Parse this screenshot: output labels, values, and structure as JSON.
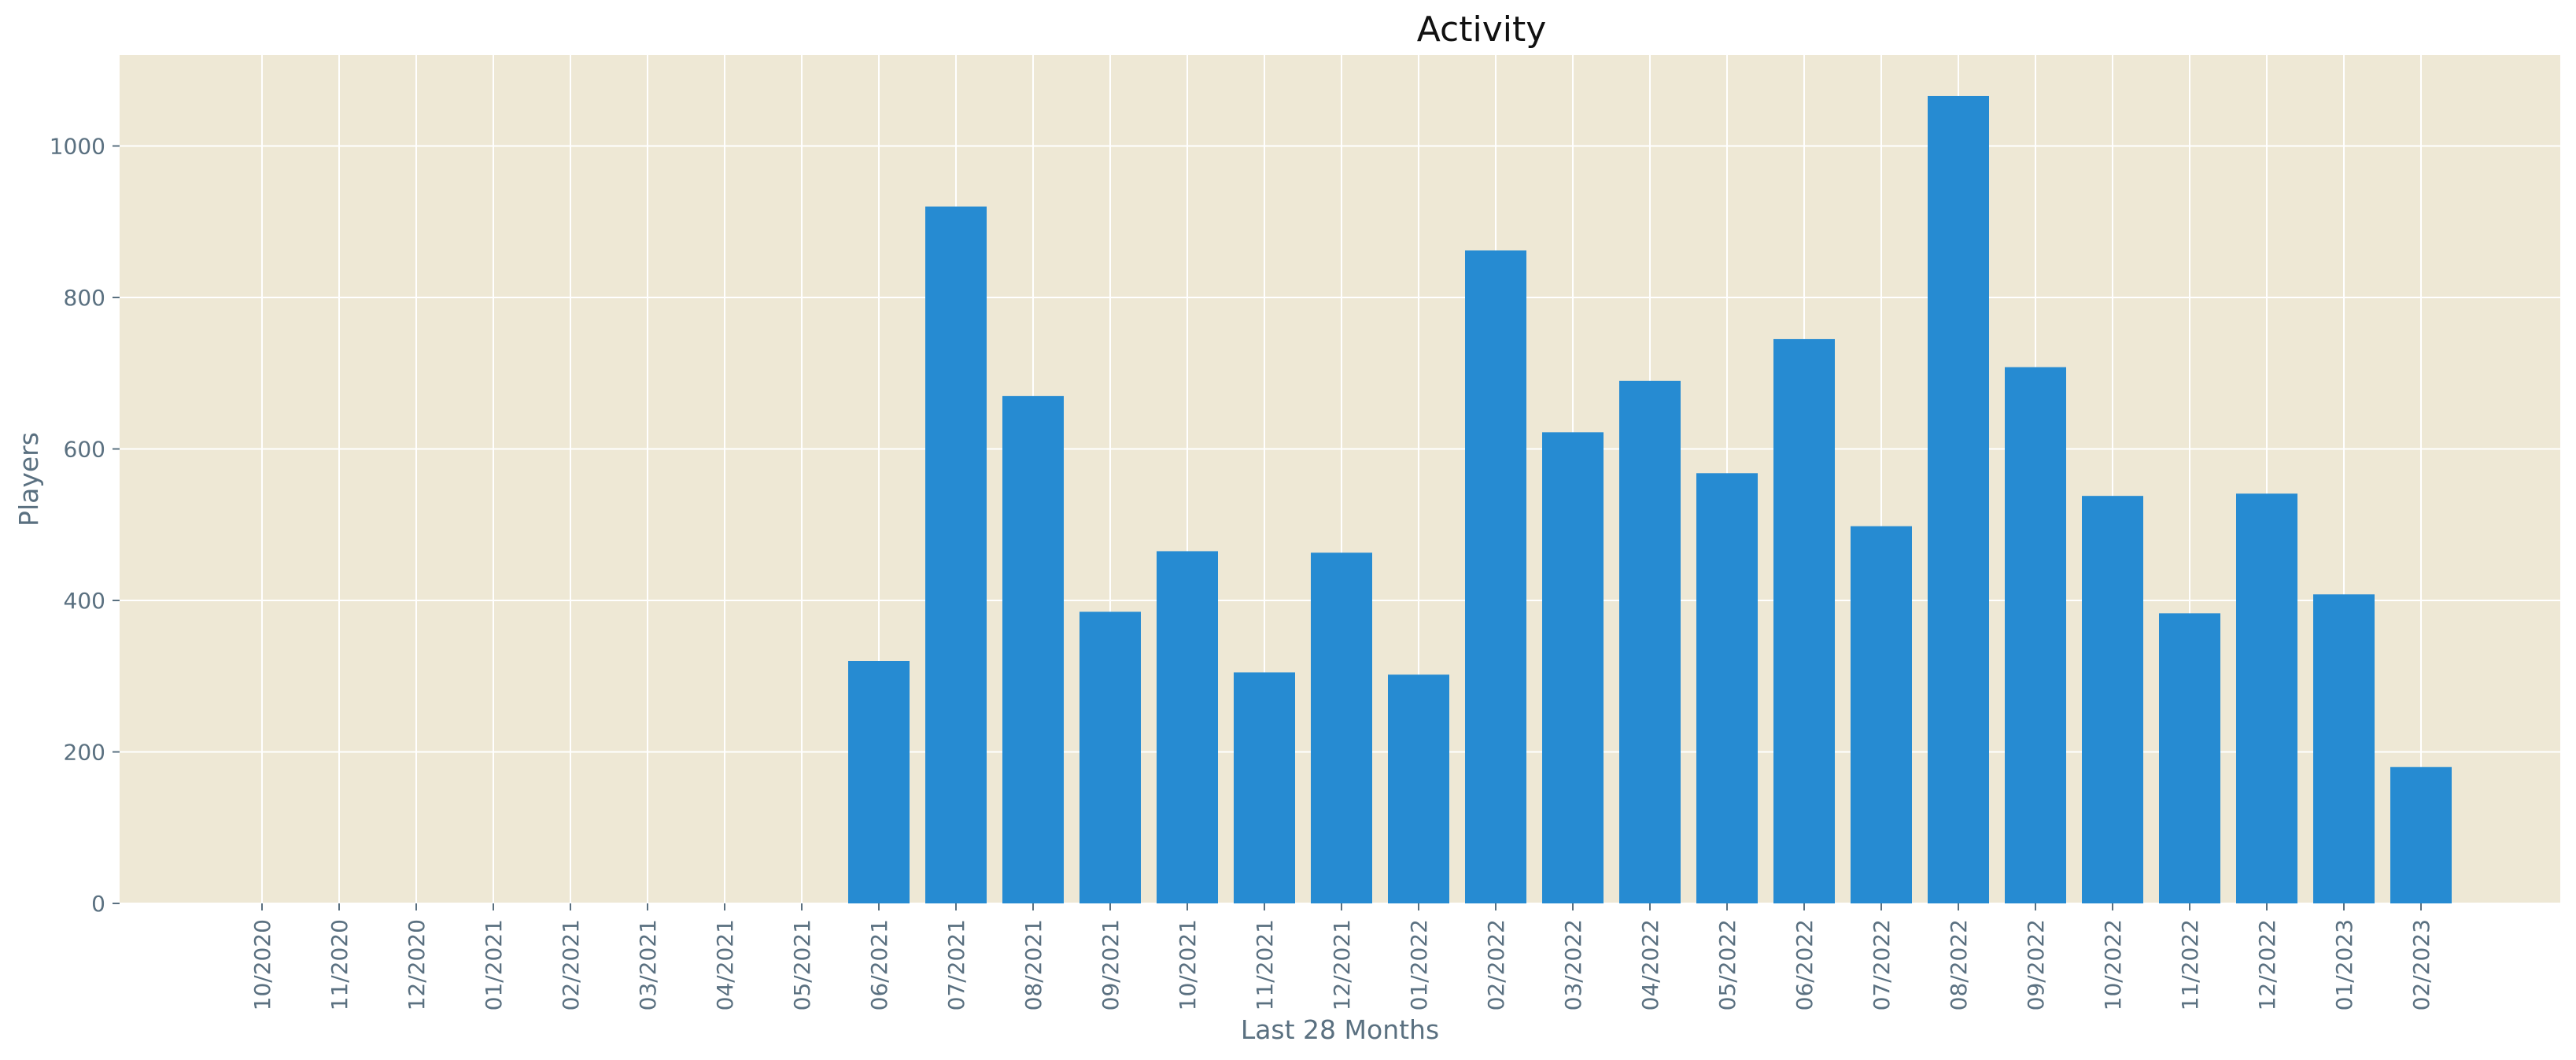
{
  "chart_data": {
    "type": "bar",
    "title": "Activity",
    "xlabel": "Last 28 Months",
    "ylabel": "Players",
    "ylim": [
      0,
      1120
    ],
    "yticks": [
      0,
      200,
      400,
      600,
      800,
      1000
    ],
    "grid": true,
    "categories": [
      "10/2020",
      "11/2020",
      "12/2020",
      "01/2021",
      "02/2021",
      "03/2021",
      "04/2021",
      "05/2021",
      "06/2021",
      "07/2021",
      "08/2021",
      "09/2021",
      "10/2021",
      "11/2021",
      "12/2021",
      "01/2022",
      "02/2022",
      "03/2022",
      "04/2022",
      "05/2022",
      "06/2022",
      "07/2022",
      "08/2022",
      "09/2022",
      "10/2022",
      "11/2022",
      "12/2022",
      "01/2023",
      "02/2023"
    ],
    "values": [
      0,
      0,
      0,
      0,
      0,
      0,
      0,
      0,
      320,
      920,
      670,
      385,
      465,
      305,
      463,
      302,
      862,
      622,
      690,
      568,
      745,
      498,
      1066,
      708,
      538,
      383,
      541,
      408,
      180
    ],
    "colors": {
      "bar": "#268bd2",
      "background": "#eee8d5",
      "grid": "#ffffff",
      "text": "#5a7080",
      "title": "#111111"
    }
  }
}
